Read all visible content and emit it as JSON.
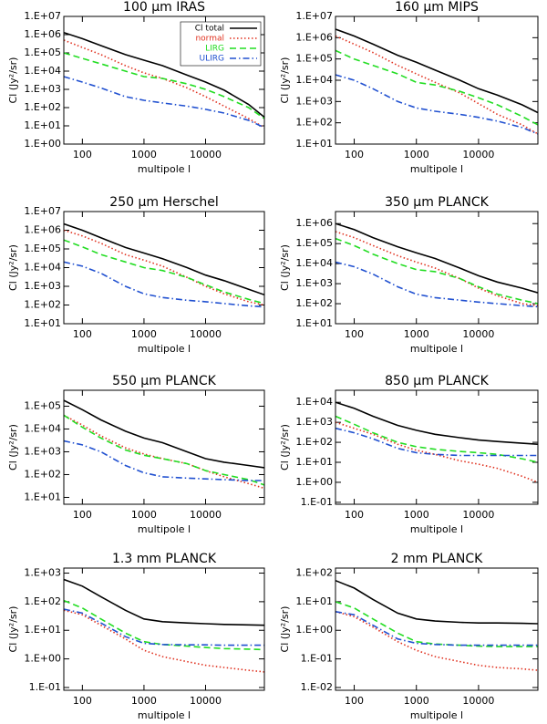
{
  "chart_data": [
    {
      "type": "line",
      "title": "100 μm IRAS",
      "xlabel": "multipole l",
      "ylabel": "Cl (Jy²/sr)",
      "xscale": "log",
      "yscale": "log",
      "legend": "upper right",
      "x": [
        50,
        100,
        200,
        500,
        1000,
        2000,
        5000,
        10000,
        20000,
        50000,
        90000
      ],
      "xlim": [
        50,
        90000
      ],
      "xticks": [
        100,
        1000,
        10000
      ],
      "ylim": [
        1,
        10000000
      ],
      "yticks": [
        {
          "value": 1,
          "label": "1.E+00"
        },
        {
          "value": 10,
          "label": "1.E+01"
        },
        {
          "value": 100,
          "label": "1.E+02"
        },
        {
          "value": 1000,
          "label": "1.E+03"
        },
        {
          "value": 10000,
          "label": "1.E+04"
        },
        {
          "value": 100000,
          "label": "1.E+05"
        },
        {
          "value": 1000000,
          "label": "1.E+06"
        },
        {
          "value": 10000000,
          "label": "1.E+07"
        }
      ],
      "series": [
        {
          "name": "Cl total",
          "color": "#000000",
          "dash": "solid",
          "values": [
            1300000,
            600000,
            250000,
            80000,
            40000,
            20000,
            6000,
            2500,
            900,
            150,
            30
          ]
        },
        {
          "name": "normal",
          "color": "#e0301e",
          "dash": "dotted",
          "values": [
            500000,
            200000,
            80000,
            20000,
            8000,
            4000,
            1200,
            400,
            120,
            25,
            8
          ]
        },
        {
          "name": "LIRG",
          "color": "#22dd22",
          "dash": "dashed",
          "values": [
            100000,
            50000,
            25000,
            10000,
            5000,
            4000,
            2000,
            1000,
            400,
            100,
            25
          ]
        },
        {
          "name": "ULIRG",
          "color": "#2050d0",
          "dash": "dashdot",
          "values": [
            5000,
            2500,
            1200,
            400,
            250,
            180,
            120,
            80,
            50,
            20,
            8
          ]
        }
      ]
    },
    {
      "type": "line",
      "title": "160 μm MIPS",
      "xlabel": "multipole l",
      "ylabel": "Cl (Jy²/sr)",
      "xscale": "log",
      "yscale": "log",
      "x": [
        50,
        100,
        200,
        500,
        1000,
        2000,
        5000,
        10000,
        20000,
        50000,
        90000
      ],
      "xlim": [
        50,
        90000
      ],
      "xticks": [
        100,
        1000,
        10000
      ],
      "ylim": [
        10,
        10000000
      ],
      "yticks": [
        {
          "value": 10,
          "label": "1.E+01"
        },
        {
          "value": 100,
          "label": "1.E+02"
        },
        {
          "value": 1000,
          "label": "1.E+03"
        },
        {
          "value": 10000,
          "label": "1.E+04"
        },
        {
          "value": 100000,
          "label": "1.E+05"
        },
        {
          "value": 1000000,
          "label": "1.E+06"
        },
        {
          "value": 10000000,
          "label": "1.E+07"
        }
      ],
      "series": [
        {
          "color": "#000000",
          "dash": "solid",
          "values": [
            2500000,
            1200000,
            500000,
            150000,
            70000,
            30000,
            10000,
            4000,
            2000,
            700,
            300
          ]
        },
        {
          "color": "#e0301e",
          "dash": "dotted",
          "values": [
            1200000,
            500000,
            200000,
            50000,
            20000,
            8000,
            2500,
            800,
            250,
            80,
            30
          ]
        },
        {
          "color": "#22dd22",
          "dash": "dashed",
          "values": [
            250000,
            100000,
            50000,
            20000,
            8000,
            6000,
            3000,
            1500,
            700,
            200,
            80
          ]
        },
        {
          "color": "#2050d0",
          "dash": "dashdot",
          "values": [
            18000,
            10000,
            4000,
            1000,
            500,
            350,
            250,
            180,
            120,
            60,
            30
          ]
        }
      ]
    },
    {
      "type": "line",
      "title": "250 μm Herschel",
      "xlabel": "multipole l",
      "ylabel": "Cl (Jy²/sr)",
      "xscale": "log",
      "yscale": "log",
      "x": [
        50,
        100,
        200,
        500,
        1000,
        2000,
        5000,
        10000,
        20000,
        50000,
        90000
      ],
      "xlim": [
        50,
        90000
      ],
      "xticks": [
        100,
        1000,
        10000
      ],
      "ylim": [
        10,
        10000000
      ],
      "yticks": [
        {
          "value": 10,
          "label": "1.E+01"
        },
        {
          "value": 100,
          "label": "1.E+02"
        },
        {
          "value": 1000,
          "label": "1.E+03"
        },
        {
          "value": 10000,
          "label": "1.E+04"
        },
        {
          "value": 100000,
          "label": "1.E+05"
        },
        {
          "value": 1000000,
          "label": "1.E+06"
        },
        {
          "value": 10000000,
          "label": "1.E+07"
        }
      ],
      "series": [
        {
          "color": "#000000",
          "dash": "solid",
          "values": [
            2200000,
            1000000,
            400000,
            120000,
            60000,
            30000,
            10000,
            4000,
            2000,
            700,
            350
          ]
        },
        {
          "color": "#e0301e",
          "dash": "dotted",
          "values": [
            1000000,
            500000,
            200000,
            50000,
            25000,
            12000,
            3000,
            1000,
            400,
            150,
            100
          ]
        },
        {
          "color": "#22dd22",
          "dash": "dashed",
          "values": [
            300000,
            130000,
            50000,
            20000,
            10000,
            7000,
            3000,
            1200,
            500,
            200,
            120
          ]
        },
        {
          "color": "#2050d0",
          "dash": "dashdot",
          "values": [
            20000,
            12000,
            5000,
            1000,
            400,
            250,
            180,
            150,
            120,
            90,
            80
          ]
        }
      ]
    },
    {
      "type": "line",
      "title": "350 μm PLANCK",
      "xlabel": "multipole l",
      "ylabel": "Cl (Jy²/sr)",
      "xscale": "log",
      "yscale": "log",
      "x": [
        50,
        100,
        200,
        500,
        1000,
        2000,
        5000,
        10000,
        20000,
        50000,
        90000
      ],
      "xlim": [
        50,
        90000
      ],
      "xticks": [
        100,
        1000,
        10000
      ],
      "ylim": [
        10,
        4000000
      ],
      "yticks": [
        {
          "value": 10,
          "label": "1.E+01"
        },
        {
          "value": 100,
          "label": "1.E+02"
        },
        {
          "value": 1000,
          "label": "1.E+03"
        },
        {
          "value": 10000,
          "label": "1.E+04"
        },
        {
          "value": 100000,
          "label": "1.E+05"
        },
        {
          "value": 1000000,
          "label": "1.E+06"
        }
      ],
      "series": [
        {
          "color": "#000000",
          "dash": "solid",
          "values": [
            1000000,
            500000,
            200000,
            70000,
            35000,
            18000,
            6000,
            2500,
            1200,
            600,
            350
          ]
        },
        {
          "color": "#e0301e",
          "dash": "dotted",
          "values": [
            400000,
            200000,
            80000,
            25000,
            12000,
            6000,
            1800,
            600,
            250,
            100,
            80
          ]
        },
        {
          "color": "#22dd22",
          "dash": "dashed",
          "values": [
            180000,
            80000,
            30000,
            10000,
            5000,
            4000,
            1800,
            700,
            300,
            150,
            100
          ]
        },
        {
          "color": "#2050d0",
          "dash": "dashdot",
          "values": [
            12000,
            7000,
            3000,
            700,
            300,
            200,
            150,
            120,
            100,
            80,
            70
          ]
        }
      ]
    },
    {
      "type": "line",
      "title": "550 μm PLANCK",
      "xlabel": "multipole l",
      "ylabel": "Cl (Jy²/sr)",
      "xscale": "log",
      "yscale": "log",
      "x": [
        50,
        100,
        200,
        500,
        1000,
        2000,
        5000,
        10000,
        20000,
        50000,
        90000
      ],
      "xlim": [
        50,
        90000
      ],
      "xticks": [
        100,
        1000,
        10000
      ],
      "ylim": [
        5,
        500000
      ],
      "yticks": [
        {
          "value": 10,
          "label": "1.E+01"
        },
        {
          "value": 100,
          "label": "1.E+02"
        },
        {
          "value": 1000,
          "label": "1.E+03"
        },
        {
          "value": 10000,
          "label": "1.E+04"
        },
        {
          "value": 100000,
          "label": "1.E+05"
        }
      ],
      "series": [
        {
          "color": "#000000",
          "dash": "solid",
          "values": [
            180000,
            70000,
            25000,
            8000,
            4000,
            2500,
            1000,
            500,
            350,
            250,
            200
          ]
        },
        {
          "color": "#e0301e",
          "dash": "dotted",
          "values": [
            40000,
            15000,
            5000,
            1500,
            800,
            500,
            300,
            150,
            80,
            40,
            25
          ]
        },
        {
          "color": "#22dd22",
          "dash": "dashed",
          "values": [
            40000,
            12000,
            4000,
            1200,
            700,
            500,
            300,
            150,
            100,
            60,
            35
          ]
        },
        {
          "color": "#2050d0",
          "dash": "dashdot",
          "values": [
            3000,
            2000,
            1000,
            250,
            120,
            80,
            70,
            65,
            60,
            55,
            55
          ]
        }
      ]
    },
    {
      "type": "line",
      "title": "850 μm PLANCK",
      "xlabel": "multipole l",
      "ylabel": "Cl (Jy²/sr)",
      "xscale": "log",
      "yscale": "log",
      "x": [
        50,
        100,
        200,
        500,
        1000,
        2000,
        5000,
        10000,
        20000,
        50000,
        90000
      ],
      "xlim": [
        50,
        90000
      ],
      "xticks": [
        100,
        1000,
        10000
      ],
      "ylim": [
        0.08,
        40000
      ],
      "yticks": [
        {
          "value": 0.1,
          "label": "1.E-01"
        },
        {
          "value": 1,
          "label": "1.E+00"
        },
        {
          "value": 10,
          "label": "1.E+01"
        },
        {
          "value": 100,
          "label": "1.E+02"
        },
        {
          "value": 1000,
          "label": "1.E+03"
        },
        {
          "value": 10000,
          "label": "1.E+04"
        }
      ],
      "series": [
        {
          "color": "#000000",
          "dash": "solid",
          "values": [
            10000,
            5000,
            2000,
            700,
            400,
            250,
            170,
            130,
            110,
            90,
            80
          ]
        },
        {
          "color": "#e0301e",
          "dash": "dotted",
          "values": [
            1000,
            500,
            250,
            80,
            40,
            25,
            12,
            8,
            5,
            2,
            1
          ]
        },
        {
          "color": "#22dd22",
          "dash": "dashed",
          "values": [
            2000,
            800,
            300,
            100,
            60,
            45,
            35,
            30,
            25,
            15,
            10
          ]
        },
        {
          "color": "#2050d0",
          "dash": "dashdot",
          "values": [
            500,
            300,
            150,
            50,
            30,
            25,
            22,
            22,
            22,
            22,
            22
          ]
        }
      ]
    },
    {
      "type": "line",
      "title": "1.3 mm PLANCK",
      "xlabel": "multipole l",
      "ylabel": "Cl (Jy²/sr)",
      "xscale": "log",
      "yscale": "log",
      "x": [
        50,
        100,
        200,
        500,
        1000,
        2000,
        5000,
        10000,
        20000,
        50000,
        90000
      ],
      "xlim": [
        50,
        90000
      ],
      "xticks": [
        100,
        1000,
        10000
      ],
      "ylim": [
        0.08,
        1500
      ],
      "yticks": [
        {
          "value": 0.1,
          "label": "1.E-01"
        },
        {
          "value": 1,
          "label": "1.E+00"
        },
        {
          "value": 10,
          "label": "1.E+01"
        },
        {
          "value": 100,
          "label": "1.E+02"
        },
        {
          "value": 1000,
          "label": "1.E+03"
        }
      ],
      "series": [
        {
          "color": "#000000",
          "dash": "solid",
          "values": [
            600,
            350,
            150,
            50,
            25,
            20,
            18,
            17,
            16,
            15.5,
            15
          ]
        },
        {
          "color": "#e0301e",
          "dash": "dotted",
          "values": [
            50,
            35,
            15,
            5,
            2,
            1.2,
            0.8,
            0.6,
            0.5,
            0.4,
            0.35
          ]
        },
        {
          "color": "#22dd22",
          "dash": "dashed",
          "values": [
            110,
            60,
            25,
            8,
            4,
            3.2,
            2.8,
            2.5,
            2.3,
            2.2,
            2.1
          ]
        },
        {
          "color": "#2050d0",
          "dash": "dashdot",
          "values": [
            55,
            40,
            18,
            6,
            3.5,
            3.2,
            3.1,
            3.1,
            3,
            3,
            3
          ]
        }
      ]
    },
    {
      "type": "line",
      "title": "2 mm PLANCK",
      "xlabel": "multipole l",
      "ylabel": "Cl (Jy²/sr)",
      "xscale": "log",
      "yscale": "log",
      "x": [
        50,
        100,
        200,
        500,
        1000,
        2000,
        5000,
        10000,
        20000,
        50000,
        90000
      ],
      "xlim": [
        50,
        90000
      ],
      "xticks": [
        100,
        1000,
        10000
      ],
      "ylim": [
        0.008,
        150
      ],
      "yticks": [
        {
          "value": 0.01,
          "label": "1.E-02"
        },
        {
          "value": 0.1,
          "label": "1.E-01"
        },
        {
          "value": 1,
          "label": "1.E+00"
        },
        {
          "value": 10,
          "label": "1.E+01"
        },
        {
          "value": 100,
          "label": "1.E+02"
        }
      ],
      "series": [
        {
          "color": "#000000",
          "dash": "solid",
          "values": [
            55,
            30,
            12,
            4,
            2.5,
            2.1,
            1.9,
            1.8,
            1.8,
            1.75,
            1.7
          ]
        },
        {
          "color": "#e0301e",
          "dash": "dotted",
          "values": [
            4.5,
            3,
            1.3,
            0.4,
            0.2,
            0.12,
            0.08,
            0.06,
            0.05,
            0.045,
            0.04
          ]
        },
        {
          "color": "#22dd22",
          "dash": "dashed",
          "values": [
            10,
            6,
            2.5,
            0.8,
            0.4,
            0.33,
            0.3,
            0.28,
            0.27,
            0.27,
            0.27
          ]
        },
        {
          "color": "#2050d0",
          "dash": "dashdot",
          "values": [
            4.5,
            3.5,
            1.5,
            0.5,
            0.35,
            0.32,
            0.3,
            0.3,
            0.3,
            0.3,
            0.3
          ]
        }
      ]
    }
  ]
}
